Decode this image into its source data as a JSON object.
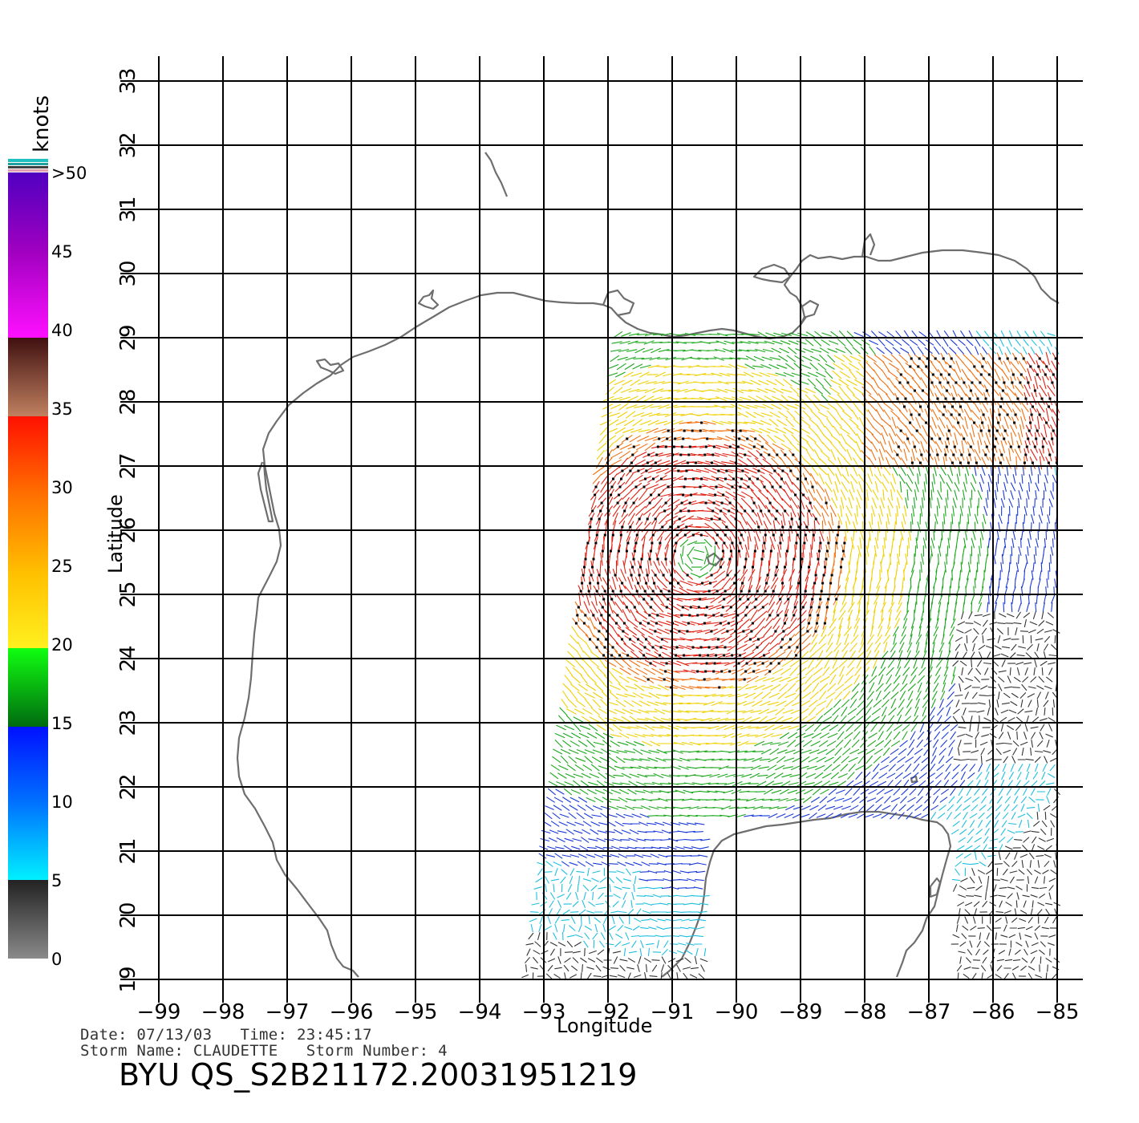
{
  "map": {
    "x_axis": {
      "label": "Longitude",
      "range": [
        -99,
        -85
      ],
      "ticks": [
        "−99",
        "−98",
        "−97",
        "−96",
        "−95",
        "−94",
        "−93",
        "−92",
        "−91",
        "−90",
        "−89",
        "−88",
        "−87",
        "−86",
        "−85"
      ]
    },
    "y_axis": {
      "label": "Latitude",
      "range": [
        19,
        33
      ],
      "ticks": [
        "19",
        "20",
        "21",
        "22",
        "23",
        "24",
        "25",
        "26",
        "27",
        "28",
        "29",
        "30",
        "31",
        "32",
        "33"
      ]
    },
    "grid": true,
    "coastline_color": "#6e6e6e"
  },
  "colorbar": {
    "units": "knots",
    "labels": [
      "0",
      "5",
      "10",
      "15",
      "20",
      "25",
      "30",
      "35",
      "40",
      "45",
      ">50"
    ]
  },
  "metadata": {
    "date_line": "Date: 07/13/03   Time: 23:45:17",
    "storm_line": "Storm Name: CLAUDETTE   Storm Number: 4",
    "product_id": "BYU QS_S2B21172.20031951219"
  },
  "colors": {
    "speed_0_5": "#333333",
    "speed_5_10": "#1fbfe0",
    "speed_10_15": "#1a3ad8",
    "speed_15_20": "#1aa81a",
    "speed_20_25": "#f0d000",
    "speed_25_30": "#f07010",
    "speed_30_35": "#e02010",
    "speed_35_40": "#7a3a20",
    "speed_40_50": "#a010c0",
    "rain_flag": "#000000"
  }
}
